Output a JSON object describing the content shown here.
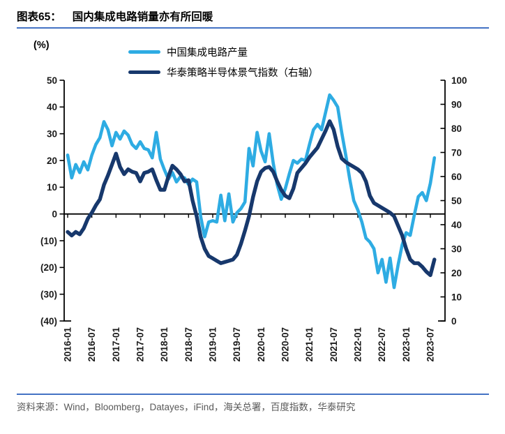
{
  "header": {
    "label": "图表65：",
    "title": "国内集成电路销量亦有所回暖"
  },
  "legend": [
    {
      "name": "中国集成电路产量",
      "color": "#2EACE3"
    },
    {
      "name": "华泰策略半导体景气指数（右轴）",
      "color": "#17386C"
    }
  ],
  "footer": {
    "source": "资料来源：Wind，Bloomberg，Datayes，iFind，海关总署，百度指数，华泰研究"
  },
  "accent_colors": {
    "rule_blue": "#4472C4",
    "axis_black": "#000000",
    "source_gray": "#595959"
  },
  "chart_data": {
    "type": "line",
    "x_start": "2016-01",
    "x_interval": "monthly",
    "x_tick_labels": [
      "2016-01",
      "2016-07",
      "2017-01",
      "2017-07",
      "2018-01",
      "2018-07",
      "2019-01",
      "2019-07",
      "2020-01",
      "2020-07",
      "2021-01",
      "2021-07",
      "2022-01",
      "2022-07",
      "2023-01",
      "2023-07"
    ],
    "left_axis": {
      "unit": "(%)",
      "min": -40,
      "max": 50,
      "tick_step": 10,
      "tick_labels": [
        "50",
        "40",
        "30",
        "20",
        "10",
        "0",
        "(10)",
        "(20)",
        "(30)",
        "(40)"
      ]
    },
    "right_axis": {
      "min": 0,
      "max": 100,
      "tick_step": 10,
      "tick_labels": [
        "100",
        "90",
        "80",
        "70",
        "60",
        "50",
        "40",
        "30",
        "20",
        "10",
        "0"
      ]
    },
    "grid": false,
    "legend_position": "top",
    "series": [
      {
        "name": "中国集成电路产量",
        "axis": "left",
        "color": "#2EACE3",
        "values": [
          22,
          13.5,
          18.5,
          15.5,
          19.5,
          16.5,
          22,
          26,
          28.5,
          34.5,
          31.5,
          25.5,
          30.5,
          28,
          31,
          29.5,
          26,
          24.5,
          27,
          24.5,
          24,
          21,
          30.5,
          20.5,
          16.5,
          13,
          15.5,
          12,
          14,
          13.5,
          11,
          13,
          12,
          -1,
          -8.5,
          -3,
          -2.5,
          -3,
          7,
          -2.5,
          7.5,
          -3,
          0.5,
          2,
          4.5,
          24.5,
          18,
          30.5,
          23.5,
          19.5,
          30,
          19,
          11,
          5.5,
          9.5,
          15,
          20,
          19,
          20.5,
          20,
          26,
          31.5,
          33.5,
          31.5,
          38,
          44.5,
          42.5,
          40,
          30.5,
          22,
          13,
          5,
          1.5,
          -3,
          -9,
          -10.5,
          -13,
          -22,
          -17,
          -25.5,
          -16.5,
          -27.5,
          -19,
          -11.5,
          -7,
          -8,
          -0.5,
          6.5,
          8,
          5,
          11.5,
          21
        ]
      },
      {
        "name": "华泰策略半导体景气指数（右轴）",
        "axis": "right",
        "color": "#17386C",
        "values": [
          37,
          35.5,
          37,
          36,
          38.5,
          42.5,
          45,
          48,
          50.5,
          56.5,
          60.5,
          65,
          69.5,
          64,
          61,
          63,
          62,
          61.5,
          58,
          61.5,
          62,
          63,
          58.5,
          54.5,
          54.5,
          60,
          64.5,
          63,
          61,
          58,
          58.5,
          50,
          43.5,
          35,
          30,
          27,
          26,
          25,
          24,
          24.5,
          25,
          25.5,
          27.5,
          32,
          37.5,
          43.5,
          51.5,
          58,
          62,
          63.5,
          64,
          62,
          58,
          54.5,
          52,
          51,
          55,
          61.5,
          63.5,
          65.5,
          68,
          70,
          72,
          75.5,
          79,
          83,
          79.5,
          72.5,
          67.5,
          66,
          65,
          64,
          63,
          61.5,
          58,
          52,
          49,
          48,
          47,
          46,
          45,
          43.5,
          39.5,
          35.5,
          30,
          25.5,
          24,
          24,
          22.5,
          20.5,
          19,
          25.5
        ]
      }
    ]
  }
}
